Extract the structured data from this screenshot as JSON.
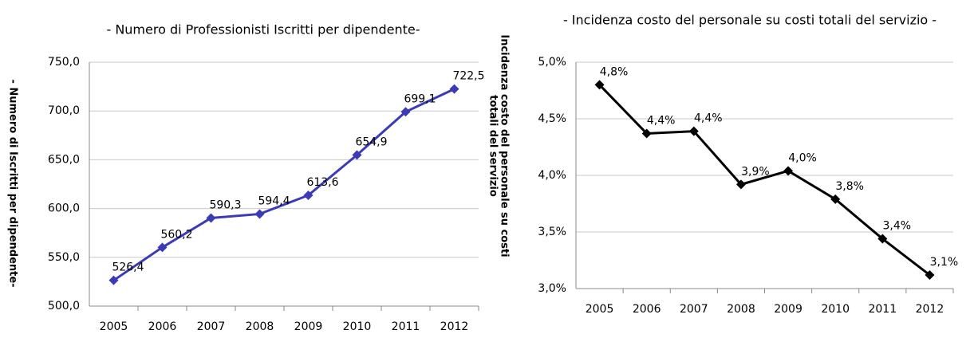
{
  "chart_data": [
    {
      "type": "line",
      "title": "- Numero di Professionisti Iscritti per dipendente-",
      "ylabel": "- Numero di Iscritti per dipendente-",
      "categories": [
        "2005",
        "2006",
        "2007",
        "2008",
        "2009",
        "2010",
        "2011",
        "2012"
      ],
      "values": [
        526.4,
        560.2,
        590.3,
        594.4,
        613.6,
        654.9,
        699.1,
        722.5
      ],
      "value_labels": [
        "526,4",
        "560,2",
        "590,3",
        "594,4",
        "613,6",
        "654,9",
        "699,1",
        "722,5"
      ],
      "color": "#3b3bb8",
      "ylim": [
        500,
        750
      ],
      "yticks": [
        {
          "value": 500,
          "label": "500,0"
        },
        {
          "value": 550,
          "label": "550,0"
        },
        {
          "value": 600,
          "label": "600,0"
        },
        {
          "value": 650,
          "label": "650,0"
        },
        {
          "value": 700,
          "label": "700,0"
        },
        {
          "value": 750,
          "label": "750,0"
        }
      ],
      "grid": true
    },
    {
      "type": "line",
      "title": "- Incidenza costo del personale su costi totali del servizio -",
      "ylabel": [
        "Incidenza costo del personale su costi",
        "totali del servizio"
      ],
      "categories": [
        "2005",
        "2006",
        "2007",
        "2008",
        "2009",
        "2010",
        "2011",
        "2012"
      ],
      "values": [
        4.8,
        4.37,
        4.39,
        3.92,
        4.04,
        3.79,
        3.44,
        3.12
      ],
      "value_labels": [
        "4,8%",
        "4,4%",
        "4,4%",
        "3,9%",
        "4,0%",
        "3,8%",
        "3,4%",
        "3,1%"
      ],
      "color": "#000000",
      "ylim": [
        3,
        5
      ],
      "yticks": [
        {
          "value": 3,
          "label": "3,0%"
        },
        {
          "value": 3.5,
          "label": "3,5%"
        },
        {
          "value": 4,
          "label": "4,0%"
        },
        {
          "value": 4.5,
          "label": "4,5%"
        },
        {
          "value": 5,
          "label": "5,0%"
        }
      ],
      "grid": true
    }
  ]
}
